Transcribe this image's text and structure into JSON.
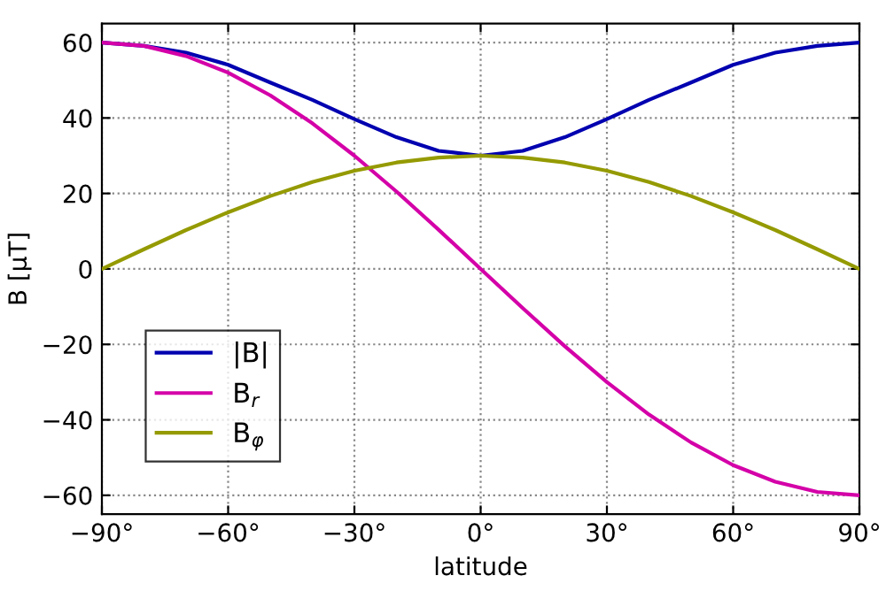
{
  "chart_data": {
    "type": "line",
    "xlabel": "latitude",
    "ylabel": "B [μT]",
    "x": [
      -90,
      -80,
      -70,
      -60,
      -50,
      -40,
      -30,
      -20,
      -10,
      0,
      10,
      20,
      30,
      40,
      50,
      60,
      70,
      80,
      90
    ],
    "series": [
      {
        "name": "|B|",
        "color": "#0000b0",
        "values": [
          60,
          59.1,
          57.3,
          54.1,
          49.4,
          44.8,
          39.7,
          34.9,
          31.3,
          30,
          31.3,
          34.9,
          39.7,
          44.8,
          49.4,
          54.1,
          57.3,
          59.1,
          60
        ]
      },
      {
        "name": "B$_{r}$",
        "color": "#d400a8",
        "values": [
          60,
          59.1,
          56.4,
          52,
          46,
          38.6,
          30,
          20.5,
          10.4,
          0,
          -10.4,
          -20.5,
          -30,
          -38.6,
          -46,
          -52,
          -56.4,
          -59.1,
          -60
        ]
      },
      {
        "name": "B$_{φ}$",
        "color": "#949a00",
        "values": [
          0,
          5.2,
          10.3,
          15,
          19.3,
          23,
          26,
          28.2,
          29.5,
          30,
          29.5,
          28.2,
          26,
          23,
          19.3,
          15,
          10.3,
          5.2,
          0
        ]
      }
    ],
    "xlim": [
      -90,
      90
    ],
    "xticks": [
      {
        "value": -90,
        "label": "−90°"
      },
      {
        "value": -60,
        "label": "−60°"
      },
      {
        "value": -30,
        "label": "−30°"
      },
      {
        "value": 0,
        "label": "0°"
      },
      {
        "value": 30,
        "label": "30°"
      },
      {
        "value": 60,
        "label": "60°"
      },
      {
        "value": 90,
        "label": "90°"
      }
    ],
    "ylim": [
      -65,
      65
    ],
    "yticks": [
      {
        "value": -60,
        "label": "−60"
      },
      {
        "value": -40,
        "label": "−40"
      },
      {
        "value": -20,
        "label": "−20"
      },
      0,
      20,
      40,
      60
    ],
    "grid": true,
    "legend": "bottom left",
    "marker": "none",
    "line_style": "solid"
  }
}
